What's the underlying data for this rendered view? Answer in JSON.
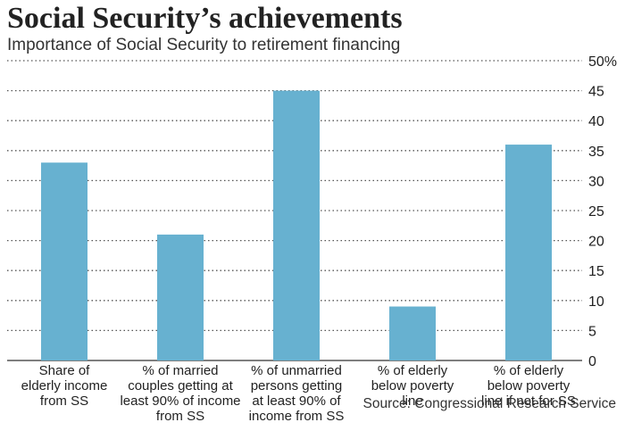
{
  "title": "Social Security’s achievements",
  "subtitle": "Importance of Social Security to retirement financing",
  "source": "Source: Congressional Research Service",
  "chart_data": {
    "type": "bar",
    "categories": [
      [
        "Share of",
        "elderly income",
        "from SS"
      ],
      [
        "% of married",
        "couples getting at",
        "least 90% of income",
        "from SS"
      ],
      [
        "% of unmarried",
        "persons getting",
        "at least 90% of",
        "income from SS"
      ],
      [
        "% of elderly",
        "below poverty",
        "line"
      ],
      [
        "% of elderly",
        "below poverty",
        "line if not for SS"
      ]
    ],
    "values": [
      33,
      21,
      45,
      9,
      36
    ],
    "ylim": [
      0,
      50
    ],
    "yticks": [
      0,
      5,
      10,
      15,
      20,
      25,
      30,
      35,
      40,
      45,
      50
    ],
    "ytick_labels": [
      "0",
      "5",
      "10",
      "15",
      "20",
      "25",
      "30",
      "35",
      "40",
      "45",
      "50%"
    ],
    "grid": true,
    "bar_color": "#67b1d0",
    "grid_color": "#555555"
  }
}
